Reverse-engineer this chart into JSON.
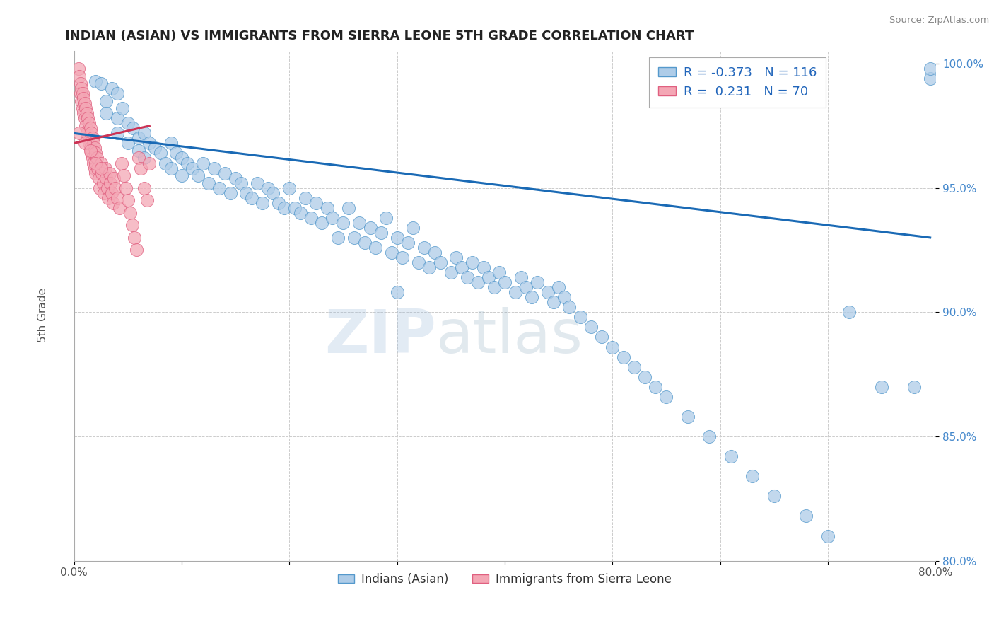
{
  "title": "INDIAN (ASIAN) VS IMMIGRANTS FROM SIERRA LEONE 5TH GRADE CORRELATION CHART",
  "source_text": "Source: ZipAtlas.com",
  "ylabel_text": "5th Grade",
  "watermark_zip": "ZIP",
  "watermark_atlas": "atlas",
  "xlim": [
    0.0,
    0.8
  ],
  "ylim": [
    0.8,
    1.005
  ],
  "xticks": [
    0.0,
    0.1,
    0.2,
    0.3,
    0.4,
    0.5,
    0.6,
    0.7,
    0.8
  ],
  "xticklabels": [
    "0.0%",
    "",
    "",
    "",
    "",
    "",
    "",
    "",
    "80.0%"
  ],
  "yticks": [
    0.8,
    0.85,
    0.9,
    0.95,
    1.0
  ],
  "yticklabels": [
    "80.0%",
    "85.0%",
    "90.0%",
    "95.0%",
    "100.0%"
  ],
  "blue_color": "#aecce8",
  "pink_color": "#f4a7b5",
  "blue_edge_color": "#5599cc",
  "pink_edge_color": "#e06080",
  "blue_line_color": "#1a6ab5",
  "pink_line_color": "#cc3355",
  "legend_R1": "-0.373",
  "legend_N1": "116",
  "legend_R2": "0.231",
  "legend_N2": "70",
  "legend_label1": "Indians (Asian)",
  "legend_label2": "Immigrants from Sierra Leone",
  "blue_scatter_x": [
    0.02,
    0.025,
    0.03,
    0.03,
    0.035,
    0.04,
    0.04,
    0.04,
    0.045,
    0.05,
    0.05,
    0.055,
    0.06,
    0.06,
    0.065,
    0.065,
    0.07,
    0.075,
    0.08,
    0.085,
    0.09,
    0.09,
    0.095,
    0.1,
    0.1,
    0.105,
    0.11,
    0.115,
    0.12,
    0.125,
    0.13,
    0.135,
    0.14,
    0.145,
    0.15,
    0.155,
    0.16,
    0.165,
    0.17,
    0.175,
    0.18,
    0.185,
    0.19,
    0.195,
    0.2,
    0.205,
    0.21,
    0.215,
    0.22,
    0.225,
    0.23,
    0.235,
    0.24,
    0.245,
    0.25,
    0.255,
    0.26,
    0.265,
    0.27,
    0.275,
    0.28,
    0.285,
    0.29,
    0.295,
    0.3,
    0.305,
    0.31,
    0.315,
    0.32,
    0.325,
    0.33,
    0.335,
    0.34,
    0.35,
    0.355,
    0.36,
    0.365,
    0.37,
    0.375,
    0.38,
    0.385,
    0.39,
    0.395,
    0.4,
    0.41,
    0.415,
    0.42,
    0.425,
    0.43,
    0.44,
    0.445,
    0.45,
    0.455,
    0.46,
    0.47,
    0.48,
    0.49,
    0.5,
    0.51,
    0.52,
    0.53,
    0.54,
    0.55,
    0.57,
    0.59,
    0.61,
    0.63,
    0.65,
    0.68,
    0.7,
    0.72,
    0.75,
    0.78,
    0.795,
    0.795,
    0.3
  ],
  "blue_scatter_y": [
    0.993,
    0.992,
    0.985,
    0.98,
    0.99,
    0.988,
    0.978,
    0.972,
    0.982,
    0.976,
    0.968,
    0.974,
    0.97,
    0.965,
    0.972,
    0.962,
    0.968,
    0.966,
    0.964,
    0.96,
    0.968,
    0.958,
    0.964,
    0.962,
    0.955,
    0.96,
    0.958,
    0.955,
    0.96,
    0.952,
    0.958,
    0.95,
    0.956,
    0.948,
    0.954,
    0.952,
    0.948,
    0.946,
    0.952,
    0.944,
    0.95,
    0.948,
    0.944,
    0.942,
    0.95,
    0.942,
    0.94,
    0.946,
    0.938,
    0.944,
    0.936,
    0.942,
    0.938,
    0.93,
    0.936,
    0.942,
    0.93,
    0.936,
    0.928,
    0.934,
    0.926,
    0.932,
    0.938,
    0.924,
    0.93,
    0.922,
    0.928,
    0.934,
    0.92,
    0.926,
    0.918,
    0.924,
    0.92,
    0.916,
    0.922,
    0.918,
    0.914,
    0.92,
    0.912,
    0.918,
    0.914,
    0.91,
    0.916,
    0.912,
    0.908,
    0.914,
    0.91,
    0.906,
    0.912,
    0.908,
    0.904,
    0.91,
    0.906,
    0.902,
    0.898,
    0.894,
    0.89,
    0.886,
    0.882,
    0.878,
    0.874,
    0.87,
    0.866,
    0.858,
    0.85,
    0.842,
    0.834,
    0.826,
    0.818,
    0.81,
    0.9,
    0.87,
    0.87,
    0.994,
    0.998,
    0.908
  ],
  "pink_scatter_x": [
    0.004,
    0.005,
    0.006,
    0.006,
    0.007,
    0.007,
    0.008,
    0.008,
    0.009,
    0.009,
    0.01,
    0.01,
    0.011,
    0.011,
    0.012,
    0.012,
    0.013,
    0.013,
    0.014,
    0.014,
    0.015,
    0.015,
    0.016,
    0.016,
    0.017,
    0.017,
    0.018,
    0.018,
    0.019,
    0.019,
    0.02,
    0.02,
    0.021,
    0.022,
    0.023,
    0.024,
    0.025,
    0.026,
    0.027,
    0.028,
    0.029,
    0.03,
    0.031,
    0.032,
    0.033,
    0.034,
    0.035,
    0.036,
    0.037,
    0.038,
    0.04,
    0.042,
    0.044,
    0.046,
    0.048,
    0.05,
    0.052,
    0.054,
    0.056,
    0.058,
    0.06,
    0.062,
    0.065,
    0.068,
    0.07,
    0.005,
    0.01,
    0.015,
    0.02,
    0.025
  ],
  "pink_scatter_y": [
    0.998,
    0.995,
    0.992,
    0.988,
    0.99,
    0.985,
    0.988,
    0.982,
    0.986,
    0.98,
    0.984,
    0.978,
    0.982,
    0.975,
    0.98,
    0.972,
    0.978,
    0.97,
    0.976,
    0.968,
    0.974,
    0.966,
    0.972,
    0.964,
    0.97,
    0.962,
    0.968,
    0.96,
    0.966,
    0.958,
    0.964,
    0.956,
    0.962,
    0.958,
    0.954,
    0.95,
    0.96,
    0.956,
    0.952,
    0.948,
    0.958,
    0.954,
    0.95,
    0.946,
    0.956,
    0.952,
    0.948,
    0.944,
    0.954,
    0.95,
    0.946,
    0.942,
    0.96,
    0.955,
    0.95,
    0.945,
    0.94,
    0.935,
    0.93,
    0.925,
    0.962,
    0.958,
    0.95,
    0.945,
    0.96,
    0.972,
    0.968,
    0.965,
    0.96,
    0.958
  ],
  "blue_trendline_x": [
    0.0,
    0.795
  ],
  "blue_trendline_y": [
    0.972,
    0.93
  ],
  "pink_trendline_x": [
    0.0,
    0.07
  ],
  "pink_trendline_y": [
    0.968,
    0.975
  ],
  "figsize": [
    14.06,
    8.92
  ],
  "dpi": 100
}
